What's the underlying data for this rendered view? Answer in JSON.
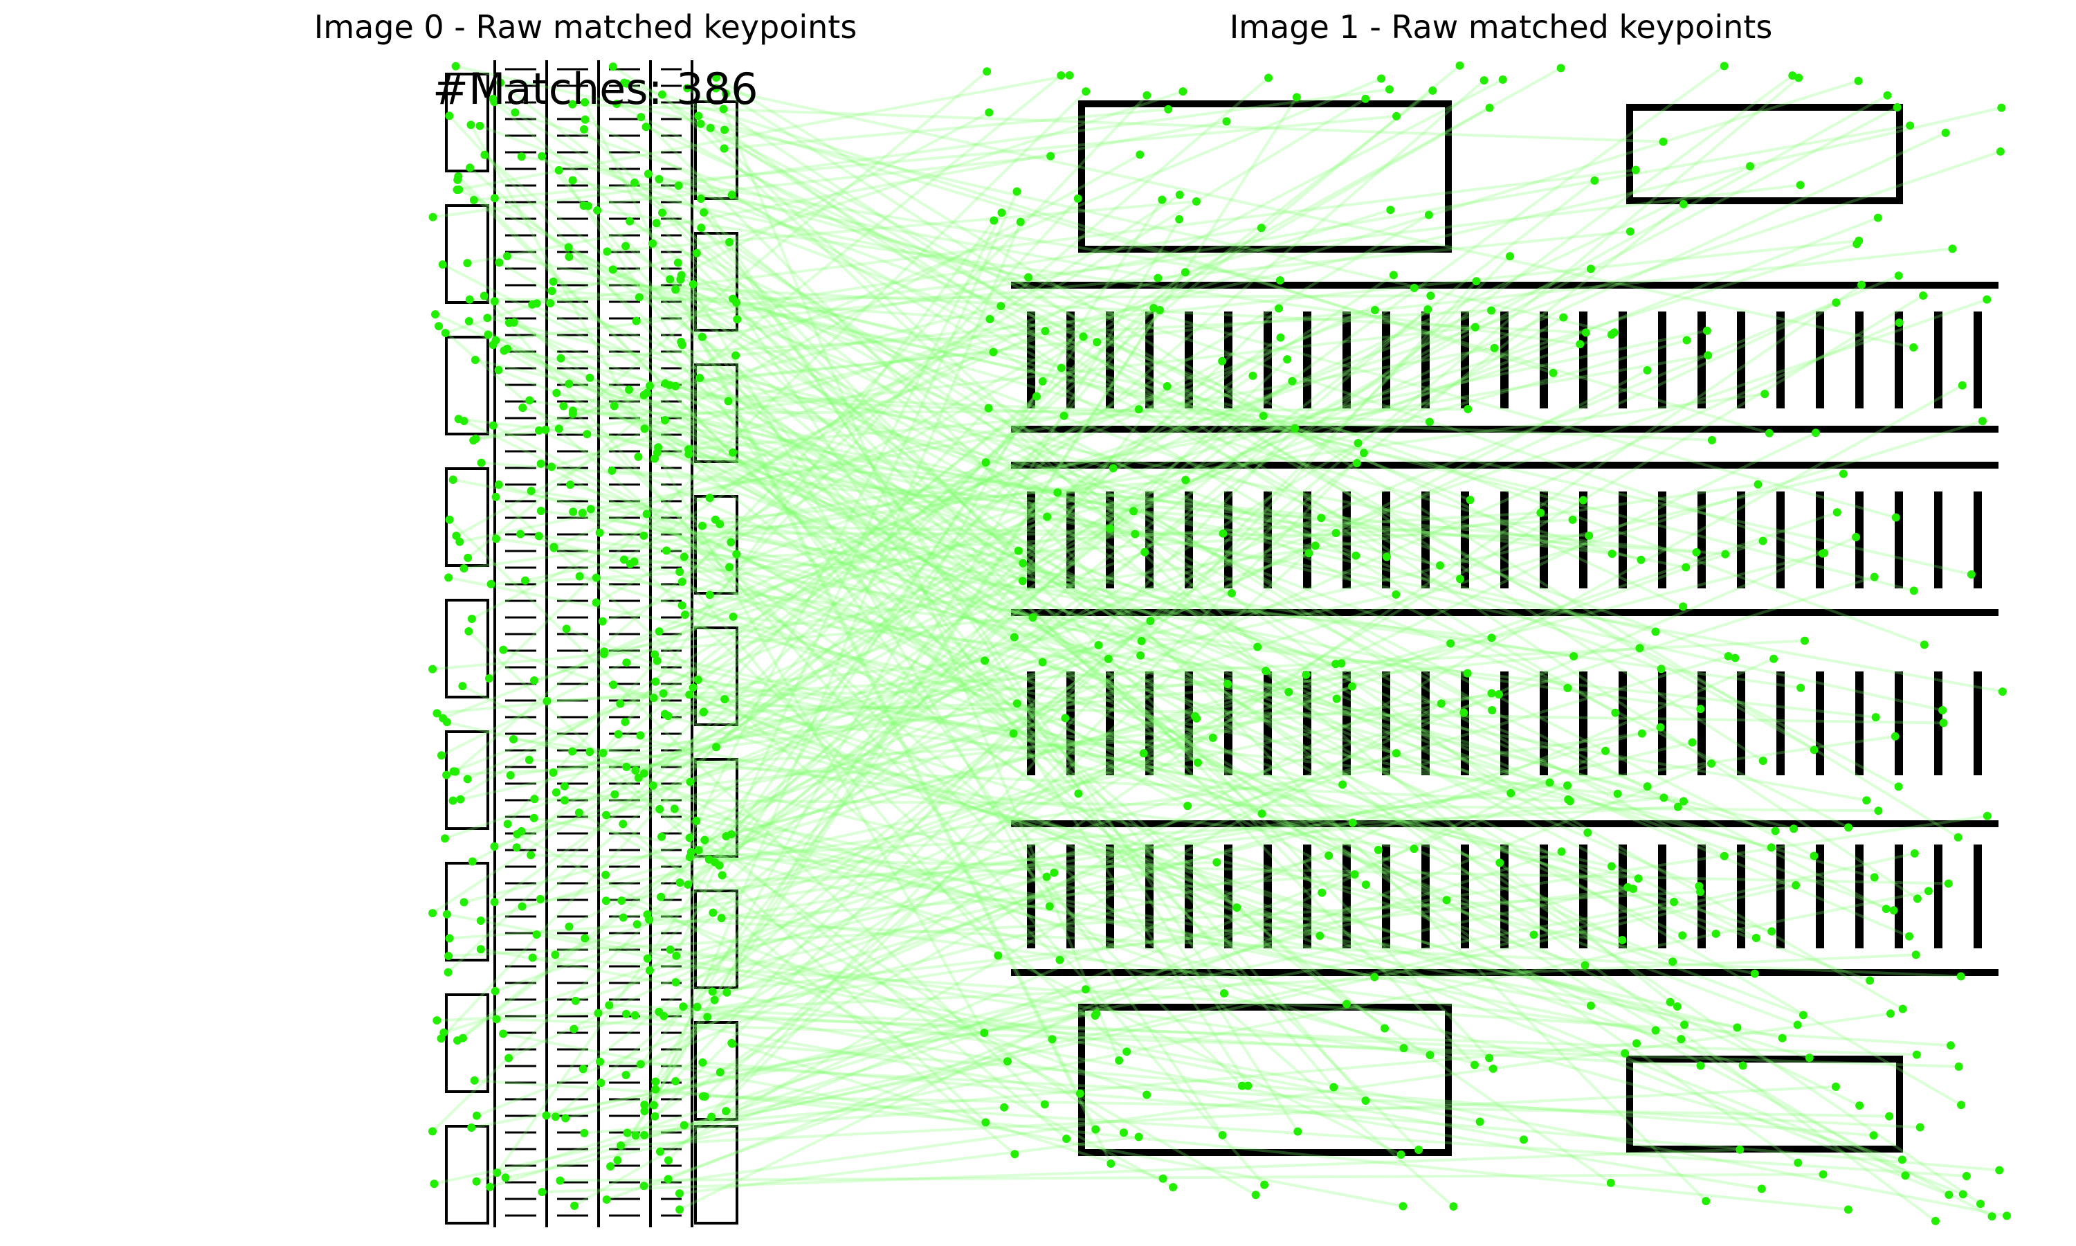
{
  "panels": [
    {
      "title": "Image 0 - Raw matched keypoints"
    },
    {
      "title": "Image 1 - Raw matched keypoints"
    }
  ],
  "matches_label": "#Matches: 386",
  "match_count": 386,
  "colors": {
    "keypoint": "#22ee00",
    "match_line": "#7dff6a",
    "drawing": "#000000"
  }
}
